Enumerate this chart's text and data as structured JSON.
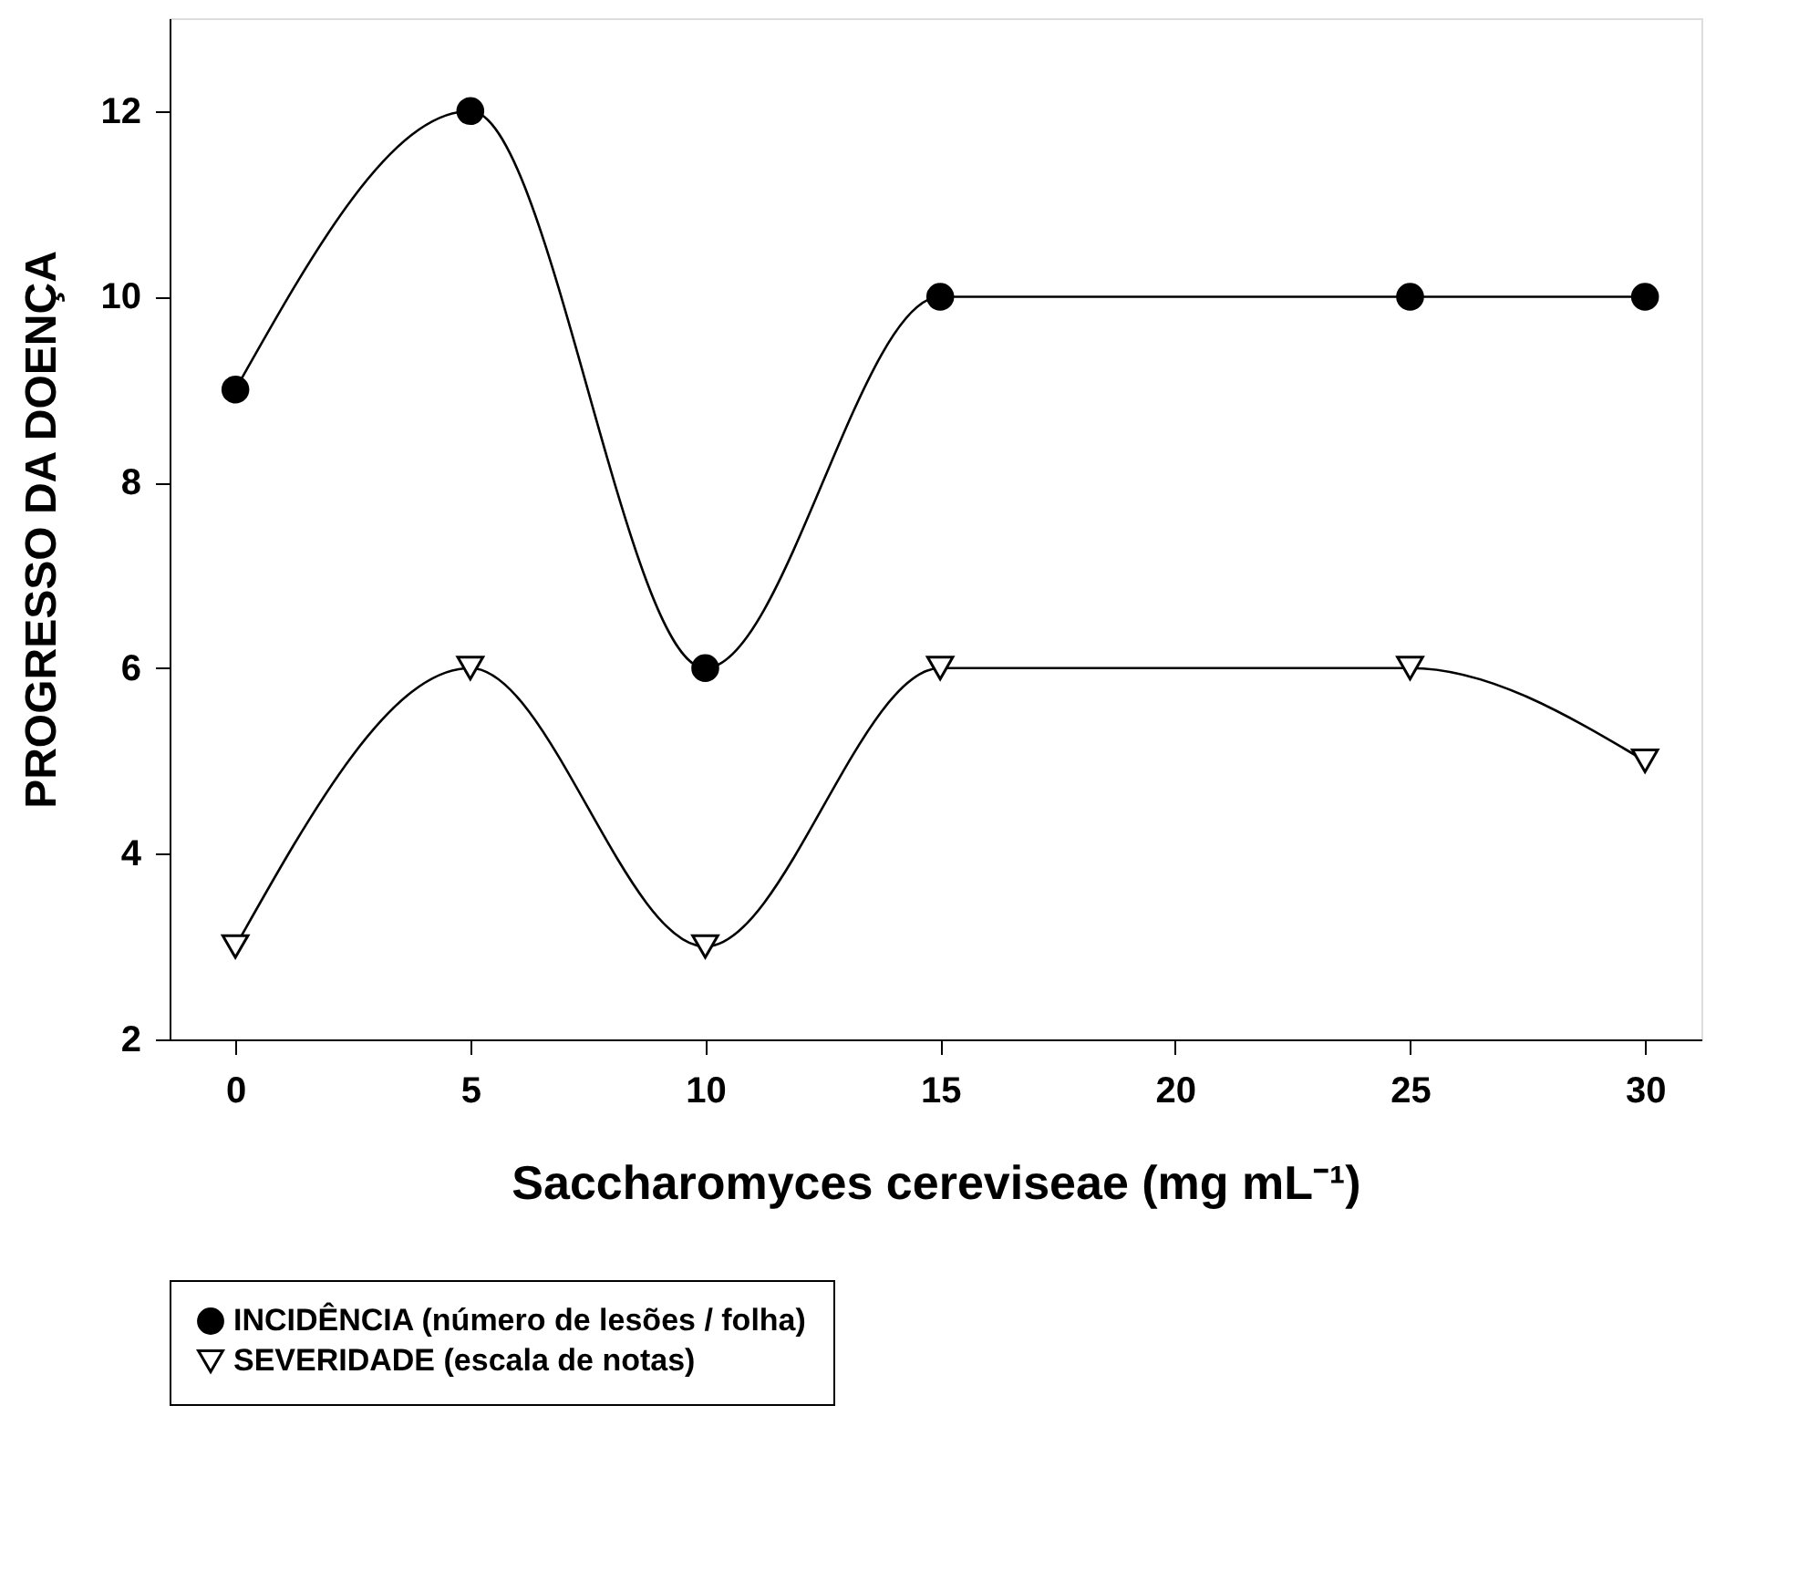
{
  "chart_data": {
    "type": "line",
    "xlabel": "Saccharomyces cereviseae (mg mL⁻¹)",
    "ylabel": "PROGRESSO DA DOENÇA",
    "x": [
      0,
      5,
      10,
      15,
      25,
      30
    ],
    "series": [
      {
        "name": "INCIDÊNCIA (número de lesões / folha)",
        "color": "#000000",
        "marker": "circle",
        "values": [
          9,
          12,
          6,
          10,
          10,
          10
        ]
      },
      {
        "name": "SEVERIDADE (escala de notas)",
        "color": "#000000",
        "marker": "triangle",
        "values": [
          3,
          6,
          3,
          6,
          6,
          5
        ]
      }
    ],
    "xlim": [
      -1.4,
      31.2
    ],
    "xticks": [
      0,
      5,
      10,
      15,
      20,
      25,
      30
    ],
    "ylim": [
      2,
      13
    ],
    "yticks": [
      2,
      4,
      6,
      8,
      10,
      12
    ],
    "grid": false,
    "legend": "bottom",
    "line_style": "solid"
  }
}
